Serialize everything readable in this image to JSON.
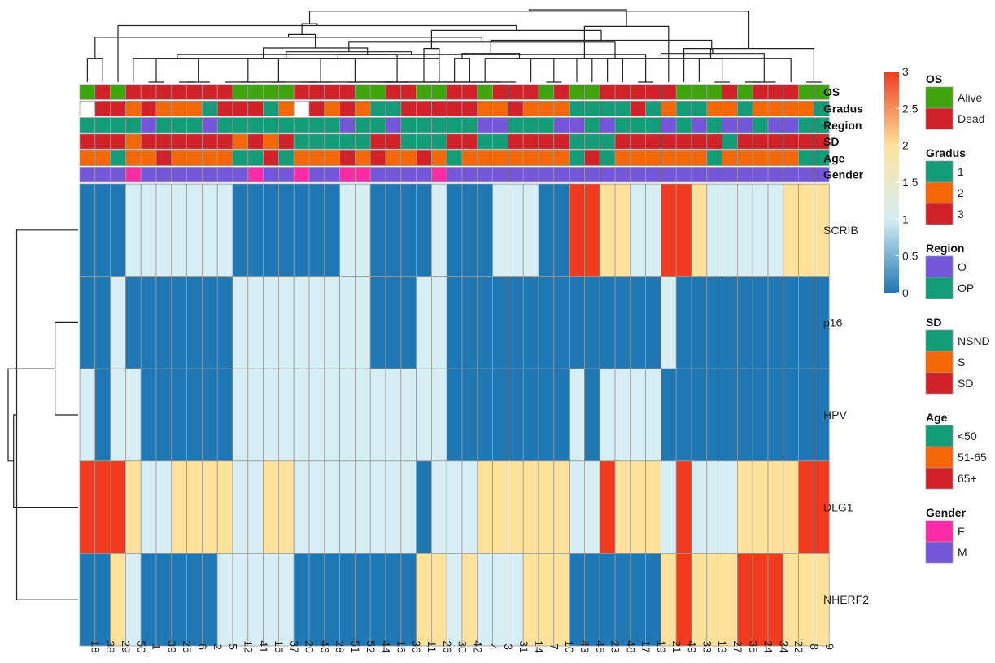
{
  "chart_data": {
    "type": "heatmap",
    "title": "",
    "columns": [
      "18",
      "38",
      "29",
      "50",
      "1",
      "39",
      "25",
      "6",
      "2",
      "5",
      "12",
      "41",
      "15",
      "37",
      "20",
      "46",
      "28",
      "51",
      "52",
      "44",
      "16",
      "36",
      "11",
      "26",
      "30",
      "42",
      "4",
      "3",
      "31",
      "14",
      "7",
      "10",
      "43",
      "45",
      "23",
      "48",
      "17",
      "19",
      "21",
      "49",
      "33",
      "13",
      "27",
      "35",
      "24",
      "34",
      "22",
      "8",
      "9"
    ],
    "rows": [
      "SCRIB",
      "p16",
      "HPV",
      "DLG1",
      "NHERF2"
    ],
    "matrix": [
      [
        0,
        0,
        0,
        1,
        1,
        1,
        1,
        1,
        1,
        1,
        0,
        0,
        0,
        0,
        0,
        0,
        0,
        1,
        1,
        0,
        0,
        0,
        0,
        1,
        0,
        0,
        0,
        1,
        1,
        1,
        0,
        0,
        3,
        3,
        2,
        2,
        1,
        1,
        3,
        3,
        2,
        1,
        1,
        1,
        1,
        1,
        2,
        2,
        2
      ],
      [
        0,
        0,
        1,
        0,
        0,
        0,
        0,
        0,
        0,
        0,
        1,
        1,
        1,
        1,
        1,
        1,
        1,
        1,
        1,
        0,
        0,
        0,
        1,
        1,
        0,
        0,
        0,
        0,
        0,
        0,
        0,
        0,
        0,
        0,
        0,
        0,
        0,
        0,
        1,
        0,
        0,
        0,
        0,
        0,
        0,
        0,
        0,
        0,
        0
      ],
      [
        1,
        0,
        1,
        1,
        0,
        0,
        0,
        0,
        0,
        0,
        1,
        1,
        1,
        1,
        1,
        1,
        1,
        1,
        1,
        1,
        1,
        1,
        1,
        1,
        0,
        0,
        0,
        0,
        0,
        0,
        0,
        0,
        1,
        0,
        1,
        1,
        1,
        1,
        0,
        0,
        0,
        0,
        0,
        0,
        0,
        0,
        0,
        0,
        0
      ],
      [
        3,
        3,
        3,
        2,
        1,
        1,
        2,
        2,
        2,
        2,
        1,
        1,
        2,
        2,
        1,
        1,
        1,
        1,
        1,
        1,
        1,
        1,
        0,
        1,
        1,
        1,
        2,
        2,
        2,
        2,
        2,
        2,
        1,
        1,
        3,
        2,
        2,
        2,
        1,
        3,
        1,
        1,
        1,
        2,
        2,
        2,
        2,
        3,
        3
      ],
      [
        0,
        0,
        2,
        1,
        0,
        0,
        0,
        0,
        0,
        1,
        1,
        1,
        1,
        1,
        0,
        0,
        0,
        0,
        0,
        0,
        0,
        0,
        2,
        2,
        1,
        2,
        1,
        1,
        1,
        2,
        2,
        2,
        0,
        0,
        0,
        0,
        0,
        0,
        2,
        3,
        2,
        2,
        2,
        3,
        3,
        3,
        2,
        2,
        2
      ]
    ],
    "annotations": [
      {
        "name": "OS",
        "values": [
          "Alive",
          "Dead",
          "Alive",
          "Dead",
          "Dead",
          "Dead",
          "Dead",
          "Dead",
          "Dead",
          "Dead",
          "Alive",
          "Alive",
          "Alive",
          "Alive",
          "Dead",
          "Dead",
          "Dead",
          "Dead",
          "Alive",
          "Alive",
          "Dead",
          "Dead",
          "Alive",
          "Alive",
          "Dead",
          "Dead",
          "Alive",
          "Dead",
          "Dead",
          "Dead",
          "Alive",
          "Dead",
          "Alive",
          "Alive",
          "Dead",
          "Dead",
          "Dead",
          "Dead",
          "Dead",
          "Alive",
          "Alive",
          "Alive",
          "Dead",
          "Alive",
          "Dead",
          "Dead",
          "Dead",
          "Alive",
          "Alive"
        ]
      },
      {
        "name": "Gradus",
        "values": [
          "",
          "3",
          "3",
          "2",
          "3",
          "2",
          "2",
          "2",
          "1",
          "3",
          "3",
          "3",
          "1",
          "2",
          "",
          "3",
          "2",
          "3",
          "2",
          "1",
          "1",
          "3",
          "3",
          "3",
          "3",
          "3",
          "2",
          "2",
          "3",
          "2",
          "2",
          "2",
          "1",
          "1",
          "1",
          "1",
          "3",
          "1",
          "2",
          "1",
          "1",
          "2",
          "2",
          "1",
          "2",
          "2",
          "2",
          "2",
          "1"
        ]
      },
      {
        "name": "Region",
        "values": [
          "OP",
          "OP",
          "OP",
          "OP",
          "O",
          "OP",
          "OP",
          "OP",
          "O",
          "OP",
          "OP",
          "OP",
          "OP",
          "OP",
          "OP",
          "OP",
          "OP",
          "O",
          "OP",
          "OP",
          "O",
          "OP",
          "OP",
          "OP",
          "OP",
          "OP",
          "O",
          "O",
          "OP",
          "OP",
          "OP",
          "O",
          "O",
          "OP",
          "O",
          "OP",
          "OP",
          "OP",
          "O",
          "OP",
          "O",
          "OP",
          "O",
          "O",
          "OP",
          "O",
          "O",
          "OP",
          "OP"
        ]
      },
      {
        "name": "SD",
        "values": [
          "SD",
          "SD",
          "SD",
          "S",
          "SD",
          "SD",
          "SD",
          "SD",
          "SD",
          "SD",
          "S",
          "SD",
          "S",
          "SD",
          "NSND",
          "NSND",
          "NSND",
          "NSND",
          "NSND",
          "SD",
          "SD",
          "NSND",
          "NSND",
          "NSND",
          "SD",
          "SD",
          "NSND",
          "NSND",
          "SD",
          "SD",
          "SD",
          "SD",
          "NSND",
          "NSND",
          "NSND",
          "SD",
          "SD",
          "SD",
          "SD",
          "SD",
          "SD",
          "SD",
          "NSND",
          "SD",
          "SD",
          "SD",
          "SD",
          "SD",
          "SD"
        ]
      },
      {
        "name": "Age",
        "values": [
          "51-65",
          "51-65",
          "<50",
          "51-65",
          "51-65",
          "65+",
          "51-65",
          "51-65",
          "51-65",
          "51-65",
          "<50",
          "<50",
          "65+",
          "<50",
          "51-65",
          "51-65",
          "51-65",
          "65+",
          "51-65",
          "65+",
          "51-65",
          "51-65",
          "65+",
          "51-65",
          "<50",
          "51-65",
          "51-65",
          "51-65",
          "51-65",
          "51-65",
          "51-65",
          "51-65",
          "<50",
          "65+",
          "<50",
          "51-65",
          "51-65",
          "51-65",
          "51-65",
          "51-65",
          "51-65",
          "<50",
          "51-65",
          "51-65",
          "51-65",
          "51-65",
          "51-65",
          "<50",
          "<50"
        ]
      },
      {
        "name": "Gender",
        "values": [
          "M",
          "M",
          "M",
          "F",
          "M",
          "M",
          "M",
          "M",
          "M",
          "M",
          "M",
          "F",
          "M",
          "M",
          "F",
          "M",
          "M",
          "F",
          "F",
          "M",
          "M",
          "M",
          "M",
          "F",
          "M",
          "M",
          "M",
          "M",
          "M",
          "M",
          "M",
          "M",
          "M",
          "M",
          "M",
          "M",
          "M",
          "M",
          "M",
          "M",
          "M",
          "M",
          "M",
          "M",
          "M",
          "M",
          "M",
          "M",
          "M"
        ]
      }
    ],
    "color_scale": {
      "min": 0,
      "max": 3,
      "ticks": [
        "3",
        "2.5",
        "2",
        "1.5",
        "1",
        "0.5",
        "0"
      ],
      "stops": [
        "#1f77b4",
        "#d6eef4",
        "#fee29b",
        "#f03b20"
      ]
    },
    "legends": [
      {
        "title": "OS",
        "items": [
          {
            "label": "Alive",
            "color": "#3fa50f"
          },
          {
            "label": "Dead",
            "color": "#d22229"
          }
        ]
      },
      {
        "title": "Gradus",
        "items": [
          {
            "label": "1",
            "color": "#129c78"
          },
          {
            "label": "2",
            "color": "#f46808"
          },
          {
            "label": "3",
            "color": "#d22229"
          }
        ]
      },
      {
        "title": "Region",
        "items": [
          {
            "label": "O",
            "color": "#7357d8"
          },
          {
            "label": "OP",
            "color": "#129c78"
          }
        ]
      },
      {
        "title": "SD",
        "items": [
          {
            "label": "NSND",
            "color": "#129c78"
          },
          {
            "label": "S",
            "color": "#f46808"
          },
          {
            "label": "SD",
            "color": "#d22229"
          }
        ]
      },
      {
        "title": "Age",
        "items": [
          {
            "label": "<50",
            "color": "#129c78"
          },
          {
            "label": "51-65",
            "color": "#f46808"
          },
          {
            "label": "65+",
            "color": "#d22229"
          }
        ]
      },
      {
        "title": "Gender",
        "items": [
          {
            "label": "F",
            "color": "#ff2aa6"
          },
          {
            "label": "M",
            "color": "#7357d8"
          }
        ]
      }
    ]
  }
}
